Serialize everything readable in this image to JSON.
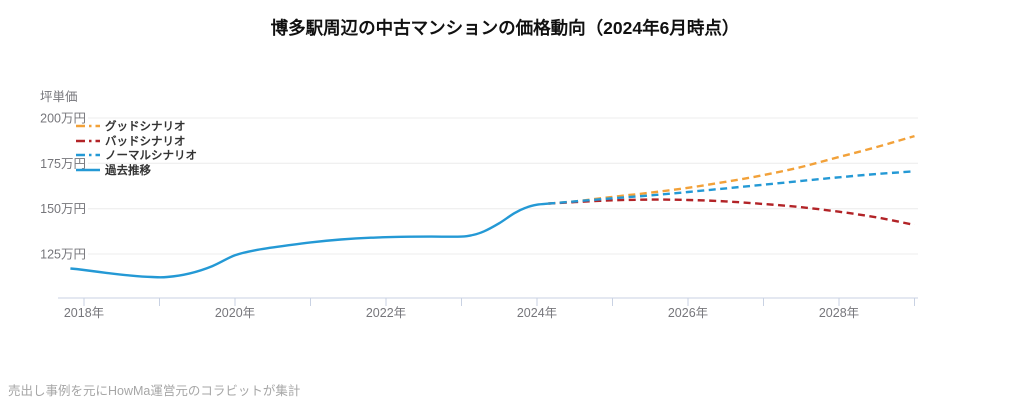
{
  "header": {
    "title": "博多駅周辺の中古マンションの価格動向（2024年6月時点）"
  },
  "footer": {
    "source_note": "売出し事例を元にHowMa運営元のコラビットが集計"
  },
  "chart_data": {
    "type": "line",
    "title": "博多駅周辺の中古マンションの価格動向（2024年6月時点）",
    "y_axis_label": "坪単価",
    "xlabel": "",
    "ylabel": "坪単価",
    "unit": "万円",
    "xlim": [
      2017.7,
      2029.3
    ],
    "ylim": [
      105,
      210
    ],
    "grid": true,
    "legend_position": "top-left",
    "colors": {
      "grid": "#ececec",
      "axis": "#c9d2e3",
      "tick_label": "#76767b",
      "title": "#111111",
      "legend_text": "#333333",
      "footer_text": "#a6a6a6",
      "good": "#f2a139",
      "bad": "#b22327",
      "normal": "#2499d5",
      "historical": "#2499d5"
    },
    "y_ticks": [
      {
        "value": 125,
        "label": "125万円"
      },
      {
        "value": 150,
        "label": "150万円"
      },
      {
        "value": 175,
        "label": "175万円"
      },
      {
        "value": 200,
        "label": "200万円"
      }
    ],
    "x_ticks": [
      {
        "year": 2018,
        "label": "2018年"
      },
      {
        "year": 2019,
        "label": ""
      },
      {
        "year": 2020,
        "label": "2020年"
      },
      {
        "year": 2021,
        "label": ""
      },
      {
        "year": 2022,
        "label": "2022年"
      },
      {
        "year": 2023,
        "label": ""
      },
      {
        "year": 2024,
        "label": "2024年"
      },
      {
        "year": 2025,
        "label": ""
      },
      {
        "year": 2026,
        "label": "2026年"
      },
      {
        "year": 2027,
        "label": ""
      },
      {
        "year": 2028,
        "label": "2028年"
      },
      {
        "year": 2029,
        "label": ""
      }
    ],
    "series": [
      {
        "id": "good",
        "name": "グッドシナリオ",
        "color": "#f2a139",
        "style": "dashed",
        "points": [
          [
            2024.15,
            152.8
          ],
          [
            2024.5,
            154.0
          ],
          [
            2025,
            156.5
          ],
          [
            2025.5,
            158.8
          ],
          [
            2026,
            161.5
          ],
          [
            2026.5,
            164.8
          ],
          [
            2027,
            168.5
          ],
          [
            2027.5,
            173.0
          ],
          [
            2028,
            178.5
          ],
          [
            2028.5,
            184.0
          ],
          [
            2029,
            190.0
          ]
        ]
      },
      {
        "id": "bad",
        "name": "バッドシナリオ",
        "color": "#b22327",
        "style": "dashed",
        "points": [
          [
            2024.15,
            152.8
          ],
          [
            2024.5,
            153.6
          ],
          [
            2025,
            154.6
          ],
          [
            2025.5,
            155.0
          ],
          [
            2026,
            154.8
          ],
          [
            2026.5,
            154.0
          ],
          [
            2027,
            152.6
          ],
          [
            2027.5,
            150.8
          ],
          [
            2028,
            148.3
          ],
          [
            2028.5,
            145.2
          ],
          [
            2029,
            141.0
          ]
        ]
      },
      {
        "id": "normal",
        "name": "ノーマルシナリオ",
        "color": "#2499d5",
        "style": "dashed",
        "points": [
          [
            2024.15,
            152.8
          ],
          [
            2024.5,
            154.0
          ],
          [
            2025,
            155.7
          ],
          [
            2025.5,
            157.3
          ],
          [
            2026,
            159.2
          ],
          [
            2026.5,
            161.2
          ],
          [
            2027,
            163.2
          ],
          [
            2027.5,
            165.3
          ],
          [
            2028,
            167.3
          ],
          [
            2028.5,
            169.1
          ],
          [
            2029,
            170.6
          ]
        ]
      },
      {
        "id": "historical",
        "name": "過去推移",
        "color": "#2499d5",
        "style": "solid",
        "points": [
          [
            2017.82,
            117.0
          ],
          [
            2018,
            116.2
          ],
          [
            2018.3,
            114.6
          ],
          [
            2018.6,
            113.2
          ],
          [
            2018.9,
            112.3
          ],
          [
            2019.1,
            112.3
          ],
          [
            2019.4,
            114.3
          ],
          [
            2019.7,
            118.3
          ],
          [
            2020,
            124.3
          ],
          [
            2020.3,
            127.3
          ],
          [
            2020.7,
            129.8
          ],
          [
            2021,
            131.4
          ],
          [
            2021.4,
            133.0
          ],
          [
            2021.8,
            134.0
          ],
          [
            2022.2,
            134.5
          ],
          [
            2022.6,
            134.6
          ],
          [
            2023,
            134.6
          ],
          [
            2023.15,
            135.5
          ],
          [
            2023.3,
            137.5
          ],
          [
            2023.5,
            142.0
          ],
          [
            2023.7,
            147.5
          ],
          [
            2023.85,
            150.5
          ],
          [
            2024,
            152.2
          ],
          [
            2024.15,
            152.8
          ]
        ]
      }
    ]
  }
}
